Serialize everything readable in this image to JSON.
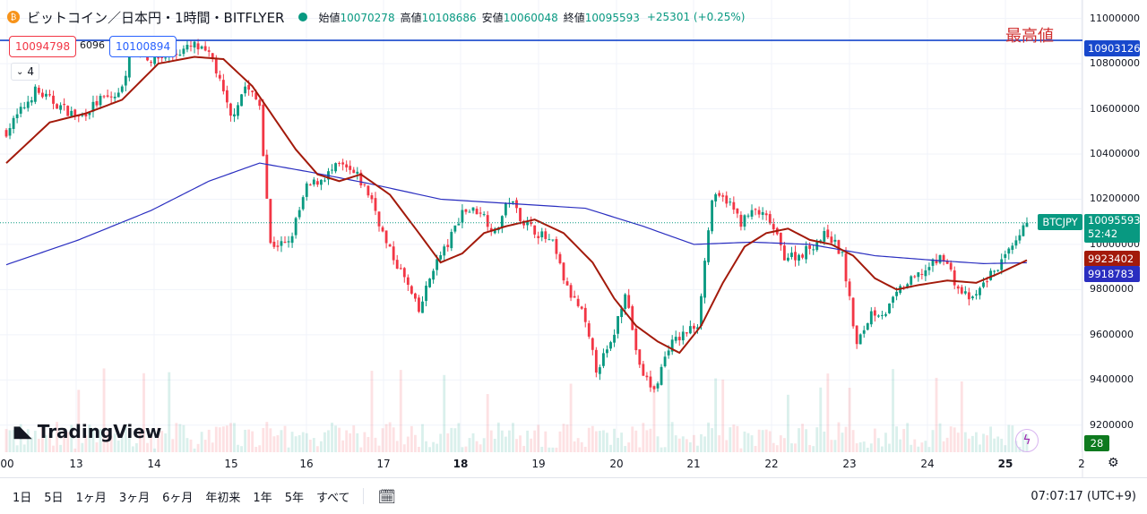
{
  "header": {
    "symbol_title": "ビットコイン／日本円・1時間・BITFLYER",
    "open_label": "始値",
    "open": "10070278",
    "high_label": "高値",
    "high": "10108686",
    "low_label": "安値",
    "low": "10060048",
    "close_label": "終値",
    "close": "10095593",
    "change": "+25301 (+0.25%)"
  },
  "price_boxes": {
    "bid": "10094798",
    "spread": "6096",
    "ask": "10100894"
  },
  "indicator_count": "4",
  "annotation": "最高値",
  "price_labels": {
    "high_line": "10903126",
    "ticker": "BTCJPY",
    "last": "10095593",
    "countdown": "52:42",
    "ma_short": "9923402",
    "ma_long": "9918783",
    "volume": "28"
  },
  "colors": {
    "up": "#089981",
    "down": "#f23645",
    "ma_short": "#a31a0b",
    "ma_long": "#2a2ec0",
    "high_line": "#1848cc"
  },
  "toolbar": {
    "ranges": [
      "1日",
      "5日",
      "1ヶ月",
      "3ヶ月",
      "6ヶ月",
      "年初来",
      "1年",
      "5年",
      "すべて"
    ],
    "clock": "07:07:17 (UTC+9)"
  },
  "logo_text": "TradingView",
  "chart_data": {
    "type": "candlestick",
    "ylim": [
      9100000,
      11050000
    ],
    "y_ticks": [
      9200000,
      9400000,
      9600000,
      9800000,
      10000000,
      10200000,
      10400000,
      10600000,
      10800000,
      11000000
    ],
    "x_ticks": [
      "00",
      "13",
      "14",
      "15",
      "16",
      "17",
      "18",
      "19",
      "20",
      "21",
      "22",
      "23",
      "24",
      "25",
      "2"
    ],
    "high_line_value": 10903126,
    "last_price": 10095593,
    "close_anchors": [
      [
        0,
        10500000
      ],
      [
        8,
        10680000
      ],
      [
        14,
        10620000
      ],
      [
        20,
        10560000
      ],
      [
        26,
        10640000
      ],
      [
        31,
        10660000
      ],
      [
        35,
        10870000
      ],
      [
        40,
        10820000
      ],
      [
        46,
        10840000
      ],
      [
        52,
        10880000
      ],
      [
        57,
        10820000
      ],
      [
        62,
        10560000
      ],
      [
        66,
        10700000
      ],
      [
        70,
        10620000
      ],
      [
        73,
        10000000
      ],
      [
        78,
        10000000
      ],
      [
        83,
        10250000
      ],
      [
        88,
        10300000
      ],
      [
        92,
        10350000
      ],
      [
        97,
        10300000
      ],
      [
        101,
        10200000
      ],
      [
        105,
        10000000
      ],
      [
        110,
        9850000
      ],
      [
        114,
        9700000
      ],
      [
        118,
        9900000
      ],
      [
        122,
        10000000
      ],
      [
        126,
        10150000
      ],
      [
        131,
        10150000
      ],
      [
        135,
        10050000
      ],
      [
        139,
        10200000
      ],
      [
        143,
        10100000
      ],
      [
        147,
        10050000
      ],
      [
        151,
        10000000
      ],
      [
        155,
        9800000
      ],
      [
        159,
        9700000
      ],
      [
        163,
        9450000
      ],
      [
        167,
        9550000
      ],
      [
        171,
        9800000
      ],
      [
        175,
        9450000
      ],
      [
        179,
        9350000
      ],
      [
        183,
        9550000
      ],
      [
        187,
        9600000
      ],
      [
        191,
        9650000
      ],
      [
        195,
        10200000
      ],
      [
        199,
        10200000
      ],
      [
        203,
        10100000
      ],
      [
        207,
        10150000
      ],
      [
        211,
        10100000
      ],
      [
        215,
        9950000
      ],
      [
        219,
        9950000
      ],
      [
        223,
        10000000
      ],
      [
        227,
        10050000
      ],
      [
        231,
        9950000
      ],
      [
        235,
        9550000
      ],
      [
        239,
        9700000
      ],
      [
        243,
        9700000
      ],
      [
        247,
        9800000
      ],
      [
        251,
        9850000
      ],
      [
        255,
        9900000
      ],
      [
        259,
        9950000
      ],
      [
        263,
        9800000
      ],
      [
        267,
        9750000
      ],
      [
        271,
        9850000
      ],
      [
        275,
        9920000
      ],
      [
        279,
        10000000
      ],
      [
        282,
        10095593
      ]
    ],
    "ma_short_anchors": [
      [
        0,
        10360000
      ],
      [
        12,
        10540000
      ],
      [
        22,
        10580000
      ],
      [
        32,
        10640000
      ],
      [
        42,
        10800000
      ],
      [
        52,
        10830000
      ],
      [
        60,
        10820000
      ],
      [
        68,
        10700000
      ],
      [
        74,
        10560000
      ],
      [
        80,
        10420000
      ],
      [
        86,
        10310000
      ],
      [
        92,
        10280000
      ],
      [
        98,
        10310000
      ],
      [
        106,
        10220000
      ],
      [
        114,
        10050000
      ],
      [
        120,
        9920000
      ],
      [
        126,
        9960000
      ],
      [
        132,
        10050000
      ],
      [
        138,
        10080000
      ],
      [
        146,
        10110000
      ],
      [
        154,
        10050000
      ],
      [
        162,
        9920000
      ],
      [
        168,
        9760000
      ],
      [
        174,
        9640000
      ],
      [
        180,
        9570000
      ],
      [
        186,
        9520000
      ],
      [
        192,
        9640000
      ],
      [
        198,
        9830000
      ],
      [
        204,
        9990000
      ],
      [
        210,
        10050000
      ],
      [
        216,
        10070000
      ],
      [
        222,
        10020000
      ],
      [
        228,
        10000000
      ],
      [
        234,
        9950000
      ],
      [
        240,
        9850000
      ],
      [
        246,
        9800000
      ],
      [
        252,
        9820000
      ],
      [
        260,
        9840000
      ],
      [
        268,
        9830000
      ],
      [
        274,
        9870000
      ],
      [
        282,
        9930000
      ]
    ],
    "ma_long_anchors": [
      [
        0,
        9910000
      ],
      [
        20,
        10020000
      ],
      [
        40,
        10150000
      ],
      [
        56,
        10280000
      ],
      [
        70,
        10360000
      ],
      [
        84,
        10320000
      ],
      [
        100,
        10270000
      ],
      [
        120,
        10200000
      ],
      [
        140,
        10180000
      ],
      [
        160,
        10160000
      ],
      [
        176,
        10080000
      ],
      [
        190,
        10000000
      ],
      [
        206,
        10010000
      ],
      [
        222,
        10000000
      ],
      [
        240,
        9950000
      ],
      [
        256,
        9930000
      ],
      [
        270,
        9915000
      ],
      [
        282,
        9918783
      ]
    ]
  }
}
